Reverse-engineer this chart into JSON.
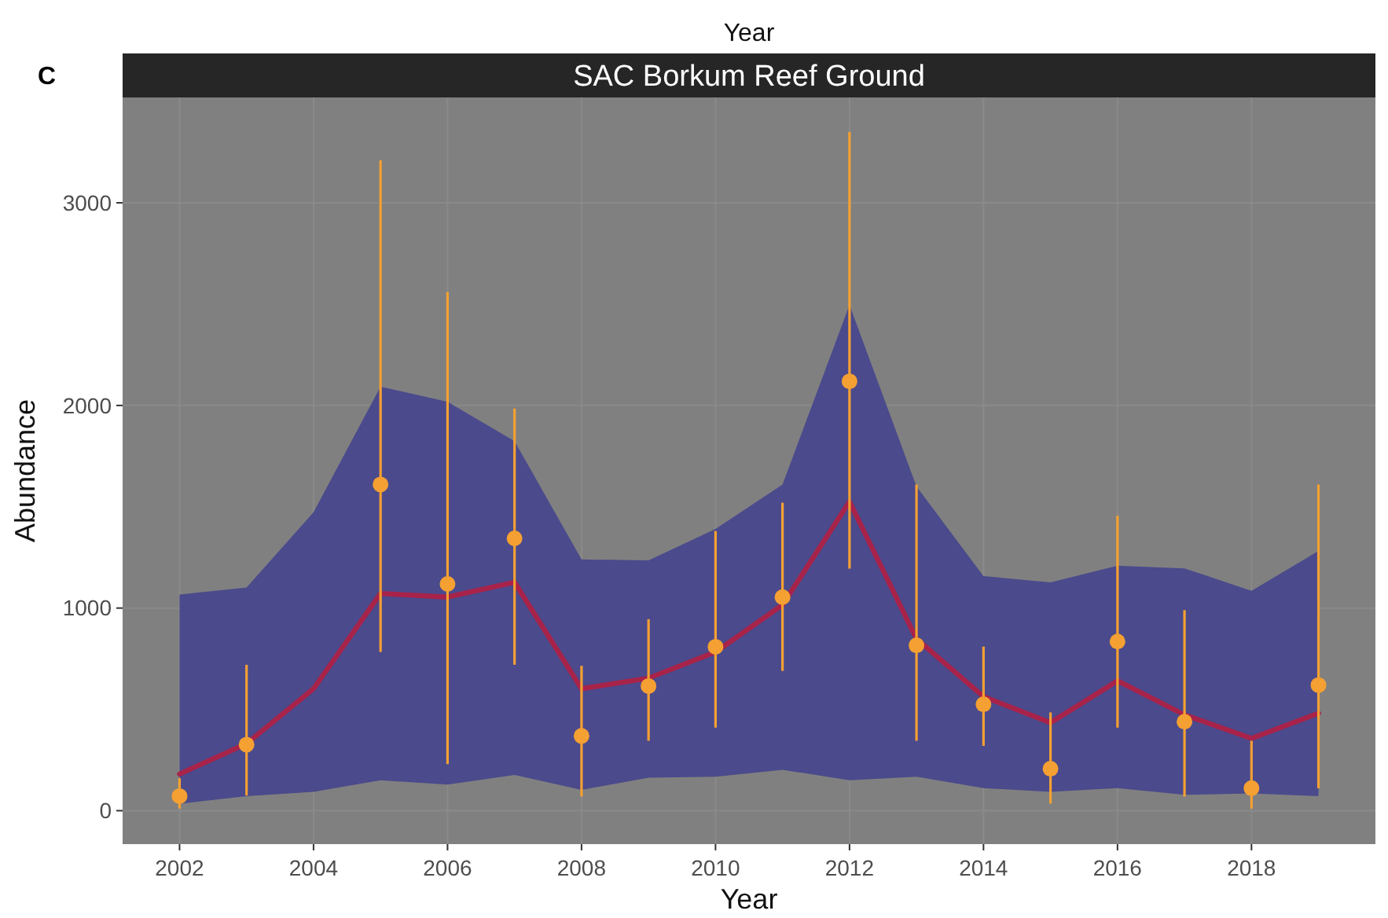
{
  "chart_data": {
    "type": "line",
    "title": "SAC Borkum Reef Ground",
    "xlabel": "Year",
    "ylabel": "Abundance",
    "annotations": [
      "C",
      "Year"
    ],
    "x": [
      2002,
      2003,
      2004,
      2005,
      2006,
      2007,
      2008,
      2009,
      2010,
      2011,
      2012,
      2013,
      2014,
      2015,
      2016,
      2017,
      2018,
      2019
    ],
    "xlim": [
      2001.15,
      2019.85
    ],
    "ylim": [
      -165,
      3520
    ],
    "xticks": [
      2002,
      2004,
      2006,
      2008,
      2010,
      2012,
      2014,
      2016,
      2018
    ],
    "yticks": [
      0,
      1000,
      2000,
      3000
    ],
    "grid": true,
    "series": [
      {
        "color": "#a8234a",
        "values": [
          181,
          331,
          602,
          1072,
          1054,
          1127,
          602,
          654,
          783,
          1016,
          1525,
          848,
          563,
          434,
          641,
          473,
          357,
          481
        ],
        "lower": [
          34,
          72,
          93,
          150,
          129,
          176,
          103,
          163,
          168,
          202,
          150,
          168,
          111,
          93,
          111,
          78,
          85,
          72
        ],
        "upper": [
          1067,
          1101,
          1473,
          2093,
          2018,
          1824,
          1240,
          1235,
          1390,
          1610,
          2496,
          1600,
          1158,
          1127,
          1209,
          1196,
          1085,
          1282
        ]
      },
      {
        "type": "scatter",
        "color": "#f5a032",
        "marker": "circle",
        "values": [
          72,
          326,
          null,
          1610,
          1119,
          1344,
          369,
          615,
          809,
          1054,
          2119,
          816,
          525,
          207,
          835,
          439,
          111,
          620
        ],
        "errors": [
          [
            10,
            160
          ],
          [
            75,
            720
          ],
          null,
          [
            783,
            3210
          ],
          [
            230,
            2560
          ],
          [
            720,
            1985
          ],
          [
            70,
            715
          ],
          [
            345,
            945
          ],
          [
            410,
            1380
          ],
          [
            690,
            1520
          ],
          [
            1195,
            3350
          ],
          [
            345,
            1610
          ],
          [
            320,
            810
          ],
          [
            35,
            485
          ],
          [
            410,
            1455
          ],
          [
            70,
            990
          ],
          [
            10,
            345
          ],
          [
            110,
            1610
          ]
        ]
      }
    ]
  }
}
